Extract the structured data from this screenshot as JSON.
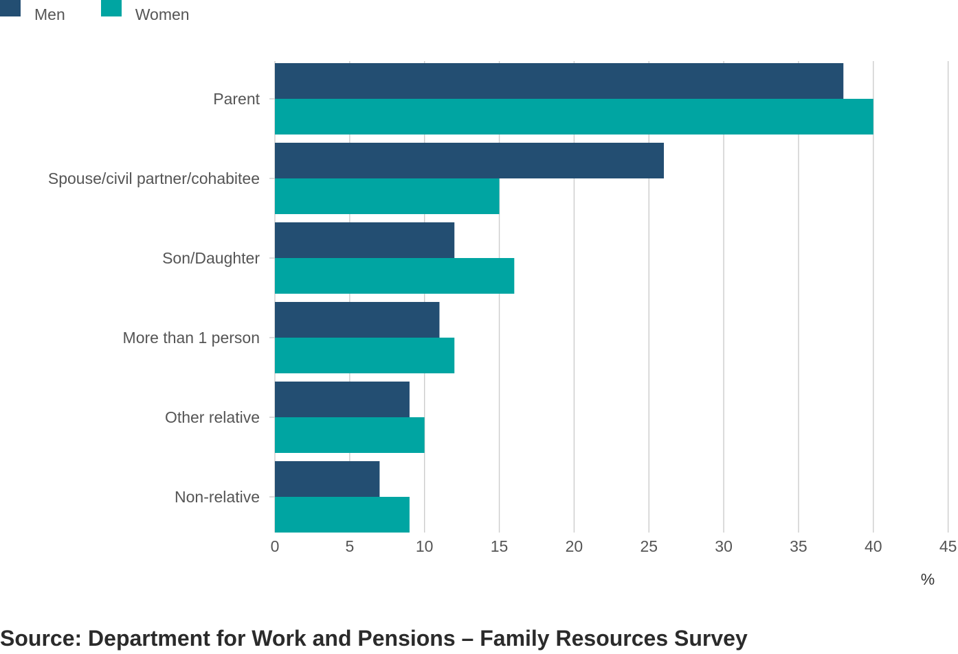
{
  "legend": {
    "men": "Men",
    "women": "Women"
  },
  "source": "Source: Department for Work and Pensions – Family Resources Survey",
  "colors": {
    "men": "#234e72",
    "women": "#00a5a2",
    "grid": "#cccccc",
    "text": "#555555"
  },
  "chart_data": {
    "type": "bar",
    "orientation": "horizontal",
    "categories": [
      "Parent",
      "Spouse/civil partner/cohabitee",
      "Son/Daughter",
      "More than 1 person",
      "Other relative",
      "Non-relative"
    ],
    "series": [
      {
        "name": "Men",
        "values": [
          38,
          26,
          12,
          11,
          9,
          7
        ]
      },
      {
        "name": "Women",
        "values": [
          40,
          15,
          16,
          12,
          10,
          9
        ]
      }
    ],
    "xlim": [
      0,
      45
    ],
    "xticks": [
      0,
      5,
      10,
      15,
      20,
      25,
      30,
      35,
      40,
      45
    ],
    "xlabel": "%",
    "grid": true,
    "legend_position": "top-left"
  }
}
